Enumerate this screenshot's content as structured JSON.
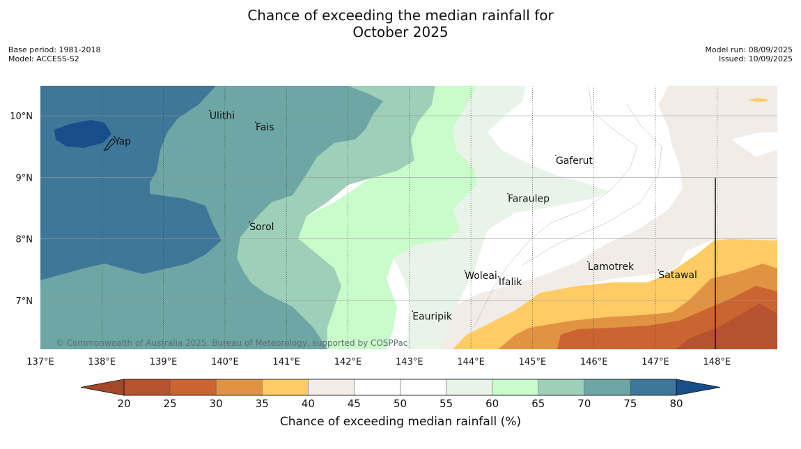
{
  "title_line1": "Chance of exceeding the median rainfall for",
  "title_line2": "October 2025",
  "meta_left": {
    "base_period": "Base period: 1981-2018",
    "model": "Model: ACCESS-S2"
  },
  "meta_right": {
    "model_run": "Model run: 08/09/2025",
    "issued": "Issued: 10/09/2025"
  },
  "credit": "© Commonwealth of Australia 2025, Bureau of Meteorology, supported by COSPPac",
  "lon_ticks": [
    "137°E",
    "138°E",
    "139°E",
    "140°E",
    "141°E",
    "142°E",
    "143°E",
    "144°E",
    "145°E",
    "146°E",
    "147°E",
    "148°E"
  ],
  "lat_ticks": [
    "10°N",
    "9°N",
    "8°N",
    "7°N"
  ],
  "places": [
    {
      "name": "Yap",
      "lon": 138.2,
      "lat": 9.53
    },
    {
      "name": "Ulithi",
      "lon": 139.75,
      "lat": 9.95
    },
    {
      "name": "Fais",
      "lon": 140.5,
      "lat": 9.76
    },
    {
      "name": "Gaferut",
      "lon": 145.38,
      "lat": 9.22
    },
    {
      "name": "Faraulep",
      "lon": 144.6,
      "lat": 8.6
    },
    {
      "name": "Sorol",
      "lon": 140.4,
      "lat": 8.14
    },
    {
      "name": "Lamotrek",
      "lon": 145.9,
      "lat": 7.5
    },
    {
      "name": "Woleai",
      "lon": 143.9,
      "lat": 7.35
    },
    {
      "name": "Ifalik",
      "lon": 144.45,
      "lat": 7.25
    },
    {
      "name": "Satawal",
      "lon": 147.05,
      "lat": 7.36
    },
    {
      "name": "Eauripik",
      "lon": 143.05,
      "lat": 6.69
    }
  ],
  "colorbar": {
    "title": "Chance of exceeding median rainfall (%)",
    "ticks": [
      "20",
      "25",
      "30",
      "35",
      "40",
      "45",
      "50",
      "55",
      "60",
      "65",
      "70",
      "75",
      "80"
    ],
    "colors": [
      "#a6472a",
      "#b5522f",
      "#cc6431",
      "#e09443",
      "#fecb65",
      "#f1ece6",
      "#ffffff",
      "#ffffff",
      "#e9f4e9",
      "#c9fcca",
      "#9ecfb8",
      "#6da6a5",
      "#3f7799",
      "#174f8a"
    ]
  }
}
